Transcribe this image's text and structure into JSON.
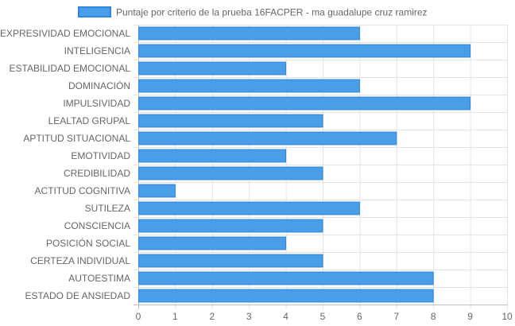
{
  "chart_data": {
    "type": "bar",
    "orientation": "horizontal",
    "title": "",
    "xlabel": "",
    "ylabel": "",
    "xlim": [
      0,
      10
    ],
    "x_ticks": [
      "0",
      "1",
      "2",
      "3",
      "4",
      "5",
      "6",
      "7",
      "8",
      "9",
      "10"
    ],
    "grid": true,
    "legend_position": "top",
    "categories": [
      "EXPRESIVIDAD EMOCIONAL",
      "INTELIGENCIA",
      "ESTABILIDAD EMOCIONAL",
      "DOMINACIÓN",
      "IMPULSIVIDAD",
      "LEALTAD GRUPAL",
      "APTITUD SITUACIONAL",
      "EMOTIVIDAD",
      "CREDIBILIDAD",
      "ACTITUD COGNITIVA",
      "SUTILEZA",
      "CONSCIENCIA",
      "POSICIÓN SOCIAL",
      "CERTEZA INDIVIDUAL",
      "AUTOESTIMA",
      "ESTADO DE ANSIEDAD"
    ],
    "series": [
      {
        "name": "Puntaje por criterio de la prueba 16FACPER - ma guadalupe cruz ramirez",
        "color": "#4a9ee8",
        "border_color": "#2f86e0",
        "values": [
          6,
          9,
          4,
          6,
          9,
          5,
          7,
          4,
          5,
          1,
          6,
          5,
          4,
          5,
          8,
          8
        ]
      }
    ]
  }
}
